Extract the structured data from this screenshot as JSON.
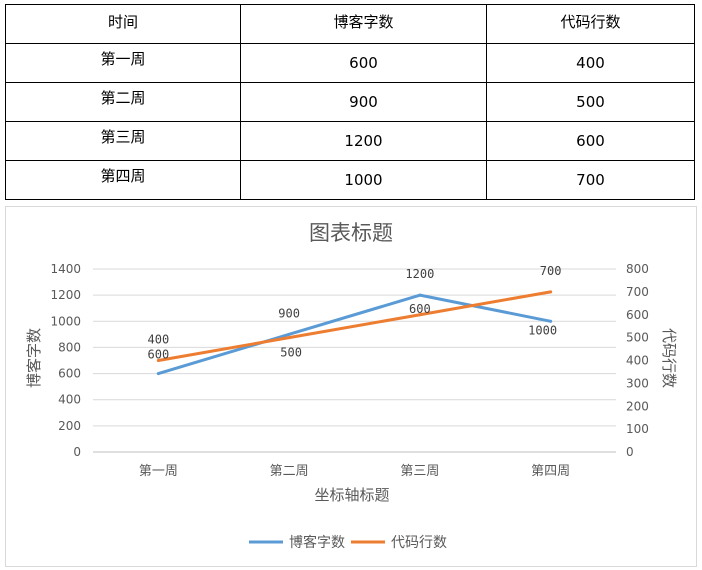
{
  "table": {
    "headers": [
      "时间",
      "博客字数",
      "代码行数"
    ],
    "rows": [
      [
        "第一周",
        "600",
        "400"
      ],
      [
        "第二周",
        "900",
        "500"
      ],
      [
        "第三周",
        "1200",
        "600"
      ],
      [
        "第四周",
        "1000",
        "700"
      ]
    ]
  },
  "chart_data": {
    "type": "line",
    "title": "图表标题",
    "xlabel": "坐标轴标题",
    "ylabel": "博客字数",
    "y2label": "代码行数",
    "categories": [
      "第一周",
      "第二周",
      "第三周",
      "第四周"
    ],
    "ylim": [
      0,
      1400
    ],
    "y_ticks": [
      0,
      200,
      400,
      600,
      800,
      1000,
      1200,
      1400
    ],
    "y2lim": [
      0,
      800
    ],
    "y2_ticks": [
      0,
      100,
      200,
      300,
      400,
      500,
      600,
      700,
      800
    ],
    "grid": true,
    "legend": "bottom",
    "series": [
      {
        "name": "博客字数",
        "axis": "left",
        "color": "#5b9bd5",
        "values": [
          600,
          900,
          1200,
          1000
        ]
      },
      {
        "name": "代码行数",
        "axis": "right",
        "color": "#ed7d31",
        "values": [
          400,
          500,
          600,
          700
        ]
      }
    ]
  }
}
